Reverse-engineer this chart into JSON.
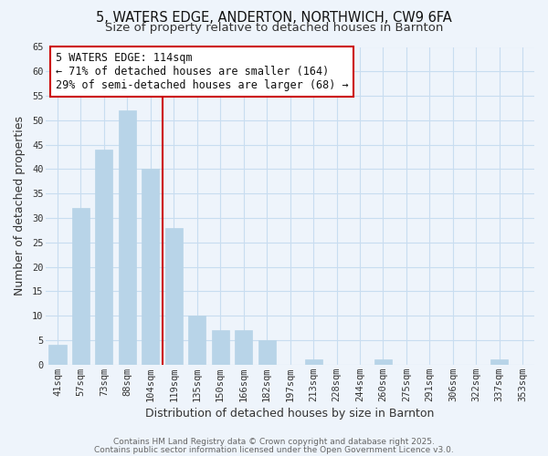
{
  "title_line1": "5, WATERS EDGE, ANDERTON, NORTHWICH, CW9 6FA",
  "title_line2": "Size of property relative to detached houses in Barnton",
  "xlabel": "Distribution of detached houses by size in Barnton",
  "ylabel": "Number of detached properties",
  "bar_labels": [
    "41sqm",
    "57sqm",
    "73sqm",
    "88sqm",
    "104sqm",
    "119sqm",
    "135sqm",
    "150sqm",
    "166sqm",
    "182sqm",
    "197sqm",
    "213sqm",
    "228sqm",
    "244sqm",
    "260sqm",
    "275sqm",
    "291sqm",
    "306sqm",
    "322sqm",
    "337sqm",
    "353sqm"
  ],
  "bar_values": [
    4,
    32,
    44,
    52,
    40,
    28,
    10,
    7,
    7,
    5,
    0,
    1,
    0,
    0,
    1,
    0,
    0,
    0,
    0,
    1,
    0
  ],
  "bar_color": "#b8d4e8",
  "vline_color": "#cc0000",
  "vline_x_index": 4.5,
  "annotation_text": "5 WATERS EDGE: 114sqm\n← 71% of detached houses are smaller (164)\n29% of semi-detached houses are larger (68) →",
  "annotation_box_facecolor": "#ffffff",
  "annotation_box_edgecolor": "#cc0000",
  "ylim": [
    0,
    65
  ],
  "yticks": [
    0,
    5,
    10,
    15,
    20,
    25,
    30,
    35,
    40,
    45,
    50,
    55,
    60,
    65
  ],
  "grid_color": "#c8ddf0",
  "background_color": "#eef4fb",
  "footer_line1": "Contains HM Land Registry data © Crown copyright and database right 2025.",
  "footer_line2": "Contains public sector information licensed under the Open Government Licence v3.0.",
  "title_fontsize": 10.5,
  "subtitle_fontsize": 9.5,
  "axis_label_fontsize": 9,
  "tick_fontsize": 7.5,
  "annotation_fontsize": 8.5,
  "footer_fontsize": 6.5
}
